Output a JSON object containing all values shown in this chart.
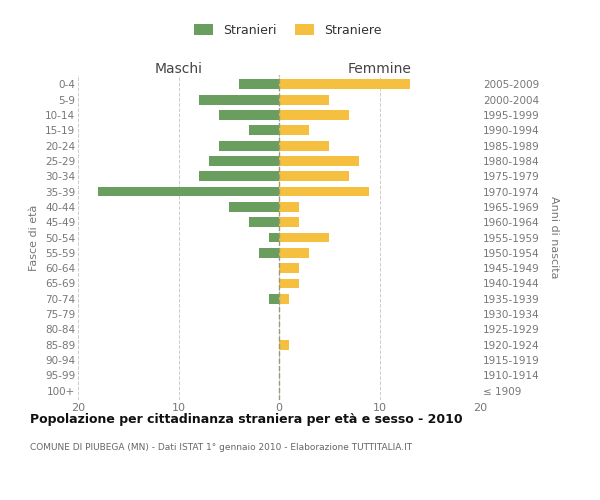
{
  "age_groups": [
    "100+",
    "95-99",
    "90-94",
    "85-89",
    "80-84",
    "75-79",
    "70-74",
    "65-69",
    "60-64",
    "55-59",
    "50-54",
    "45-49",
    "40-44",
    "35-39",
    "30-34",
    "25-29",
    "20-24",
    "15-19",
    "10-14",
    "5-9",
    "0-4"
  ],
  "birth_years": [
    "≤ 1909",
    "1910-1914",
    "1915-1919",
    "1920-1924",
    "1925-1929",
    "1930-1934",
    "1935-1939",
    "1940-1944",
    "1945-1949",
    "1950-1954",
    "1955-1959",
    "1960-1964",
    "1965-1969",
    "1970-1974",
    "1975-1979",
    "1980-1984",
    "1985-1989",
    "1990-1994",
    "1995-1999",
    "2000-2004",
    "2005-2009"
  ],
  "maschi": [
    0,
    0,
    0,
    0,
    0,
    0,
    1,
    0,
    0,
    2,
    1,
    3,
    5,
    18,
    8,
    7,
    6,
    3,
    6,
    8,
    4
  ],
  "femmine": [
    0,
    0,
    0,
    1,
    0,
    0,
    1,
    2,
    2,
    3,
    5,
    2,
    2,
    9,
    7,
    8,
    5,
    3,
    7,
    5,
    13
  ],
  "maschi_color": "#6a9e5f",
  "femmine_color": "#f5c040",
  "title": "Popolazione per cittadinanza straniera per età e sesso - 2010",
  "subtitle": "COMUNE DI PIUBEGA (MN) - Dati ISTAT 1° gennaio 2010 - Elaborazione TUTTITALIA.IT",
  "maschi_header": "Maschi",
  "femmine_header": "Femmine",
  "ylabel_left": "Fasce di età",
  "ylabel_right": "Anni di nascita",
  "legend_maschi": "Stranieri",
  "legend_femmine": "Straniere",
  "xlim": 20,
  "background_color": "#ffffff",
  "bar_height": 0.65,
  "grid_color": "#cccccc",
  "axis_label_color": "#777777",
  "header_color": "#444444",
  "title_color": "#111111",
  "subtitle_color": "#666666"
}
